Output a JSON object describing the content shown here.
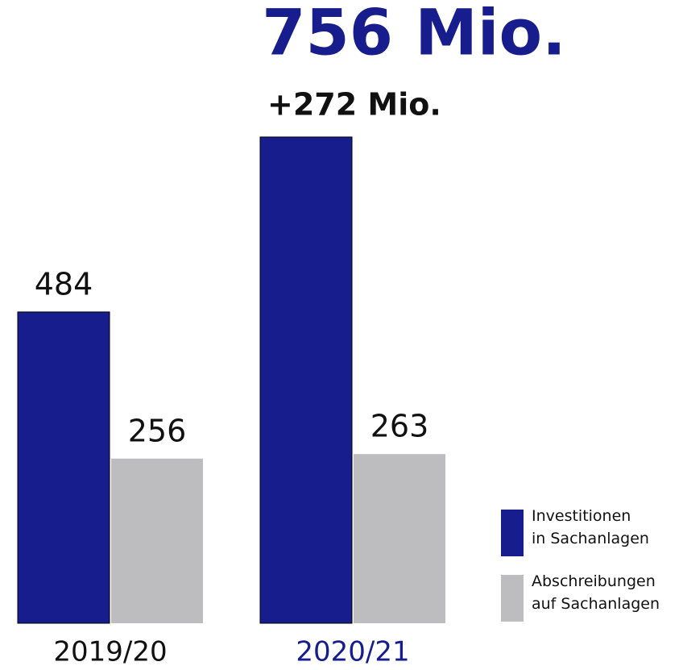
{
  "chart_data": {
    "type": "bar",
    "categories": [
      "2019/20",
      "2020/21"
    ],
    "series": [
      {
        "name": "Investitionen\nin Sachanlagen",
        "color": "#171d8c",
        "values": [
          484,
          756
        ],
        "value_labels": [
          "484",
          "756 Mio."
        ]
      },
      {
        "name": "Abschreibungen\nauf Sachanlagen",
        "color": "#bdbdbf",
        "values": [
          256,
          263
        ]
      }
    ],
    "annotation": "+272 Mio.",
    "legend": "right"
  }
}
